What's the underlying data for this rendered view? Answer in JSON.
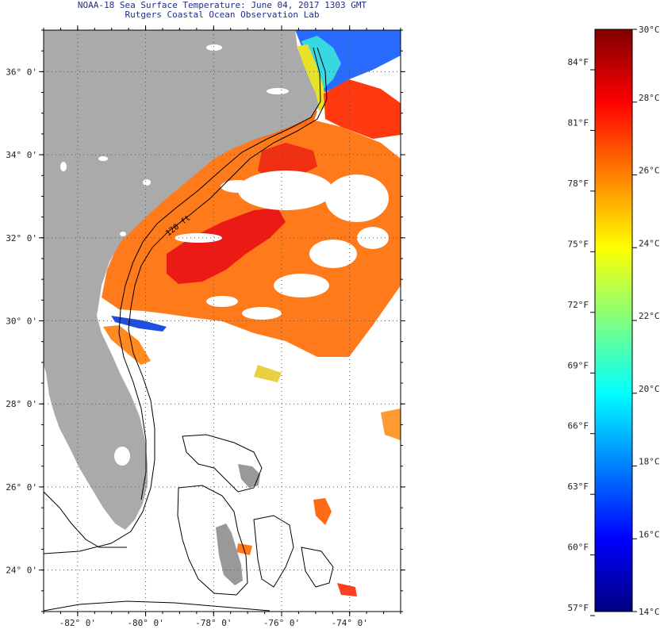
{
  "title": {
    "line1": "NOAA-18 Sea Surface Temperature:  June 04, 2017 1303 GMT",
    "line2": "Rutgers Coastal Ocean Observation Lab"
  },
  "map": {
    "lon_range": [
      -83,
      -72.5
    ],
    "lat_range": [
      23,
      37
    ],
    "lon_ticks": [
      {
        "value": -82,
        "label": "-82° 0'"
      },
      {
        "value": -80,
        "label": "-80° 0'"
      },
      {
        "value": -78,
        "label": "-78° 0'"
      },
      {
        "value": -76,
        "label": "-76° 0'"
      },
      {
        "value": -74,
        "label": "-74° 0'"
      }
    ],
    "lat_ticks": [
      {
        "value": 36,
        "label": "36° 0'"
      },
      {
        "value": 34,
        "label": "34° 0'"
      },
      {
        "value": 32,
        "label": "32° 0'"
      },
      {
        "value": 30,
        "label": "30° 0'"
      },
      {
        "value": 28,
        "label": "28° 0'"
      },
      {
        "value": 26,
        "label": "26° 0'"
      },
      {
        "value": 24,
        "label": "24° 0'"
      }
    ],
    "isobath_label": "120 ft",
    "colors": {
      "land": "#aaaaaa",
      "grid": "#555555",
      "warm": "#ff6a00",
      "hot": "#e8141a",
      "cool": "#1e60ff"
    }
  },
  "colorbar": {
    "range_c": [
      14,
      30
    ],
    "celsius_labels": [
      {
        "value": 30,
        "label": "30°C"
      },
      {
        "value": 28,
        "label": "28°C"
      },
      {
        "value": 26,
        "label": "26°C"
      },
      {
        "value": 24,
        "label": "24°C"
      },
      {
        "value": 22,
        "label": "22°C"
      },
      {
        "value": 20,
        "label": "20°C"
      },
      {
        "value": 18,
        "label": "18°C"
      },
      {
        "value": 16,
        "label": "16°C"
      },
      {
        "value": 14,
        "label": "14°C"
      }
    ],
    "fahrenheit_labels": [
      {
        "value": 84,
        "label": "84°F"
      },
      {
        "value": 81,
        "label": "81°F"
      },
      {
        "value": 78,
        "label": "78°F"
      },
      {
        "value": 75,
        "label": "75°F"
      },
      {
        "value": 72,
        "label": "72°F"
      },
      {
        "value": 69,
        "label": "69°F"
      },
      {
        "value": 66,
        "label": "66°F"
      },
      {
        "value": 63,
        "label": "63°F"
      },
      {
        "value": 60,
        "label": "60°F"
      },
      {
        "value": 57,
        "label": "57°F"
      }
    ],
    "stops": [
      "#00007f",
      "#0000ff",
      "#0080ff",
      "#00ffff",
      "#80ff80",
      "#ffff00",
      "#ff8000",
      "#ff0000",
      "#7f0000"
    ]
  }
}
